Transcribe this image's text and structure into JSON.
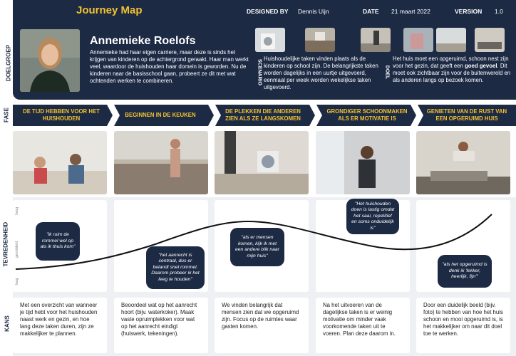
{
  "header": {
    "title": "Journey Map",
    "designed_by_label": "DESIGNED BY",
    "designed_by": "Dennis Uijn",
    "date_label": "DATE",
    "date": "21 maart 2022",
    "version_label": "VERSION",
    "version": "1.0"
  },
  "persona": {
    "section_label": "DOELGROEP",
    "name": "Annemieke Roelofs",
    "description": "Annemieke had haar eigen carriere, maar deze is sinds het krijgen van kinderen op de achtergrond geraakt. Haar man werkt veel, waardoor de huishouden haar domein is geworden. Nu de kinderen naar de basisschool gaan, probeert ze dit met wat ochtenden werken te combineren."
  },
  "scenario": {
    "label": "SCENARIO",
    "text": "Huishoudelijke taken vinden plaats als de kinderen op school zijn. De belangrijkste taken worden dagelijks in een uurtje uitgevoerd, eenmaal per week worden wekelijkse taken uitgevoerd."
  },
  "goal": {
    "label": "DOEL",
    "text_before": "Het huis moet een opgeruimd, schoon nest zijn voor het gezin, dat geeft een ",
    "text_bold": "goed gevoel",
    "text_after": ". Dit moet ook zichtbaar zijn voor de buitenwereld en als anderen langs op bezoek komen."
  },
  "phases": {
    "label": "FASE",
    "items": [
      "DE TIJD HEBBEN VOOR HET HUISHOUDEN",
      "BEGINNEN IN DE KEUKEN",
      "DE PLEKKEN DIE ANDEREN ZIEN ALS ZE LANGSKOMEN",
      "GRONDIGER SCHOONMAKEN ALS ER MOTIVATIE IS",
      "GENIETEN VAN DE RUST VAN EEN OPGERUIMD HUIS"
    ]
  },
  "satisfaction": {
    "label": "TEVREDENHEID",
    "levels": [
      "hoog",
      "gemiddeld",
      "laag"
    ],
    "quotes": [
      "\"ik ruim de rommel wel op als ik thuis kom\"",
      "\"het aanrecht is centraal, dus er belandt snel rommel. Daarom probeer ik het leeg te houden\"",
      "\"als er mensen komen, kijk ik met een andere blik naar mijn huis\"",
      "\"Het huishouden doen is lastig omdat het saai, repetitief en soms onduidelijk is\"",
      "\"als het opgeruimd is denk ik 'lekker, heerlijk, fijn'\""
    ]
  },
  "opportunities": {
    "label": "KANS",
    "items": [
      "Met een overzicht van wanneer je tijd hebt voor het huishouden naast werk en gezin, en hoe lang deze taken duren, zijn ze makkelijker te plannen.",
      "Beoordeel wat op het aanrecht hoort (bijv. waterkoker). Maak vaste opruimplekken voor wat op het aanrecht eindigt (huiswerk, tekeningen).",
      "We vinden belangrijk dat mensen zien dat we opgeruimd zijn. Focus op de ruimtes waar gasten komen.",
      "Na het uitvoeren van de dagelijkse taken is er weinig motivatie om minder vaak voorkomende taken uit te voeren. Plan deze daarom in.",
      "Door een duidelijk beeld (bijv. foto) te hebben van hoe het huis schoon en mooi opgeruimd is, is het makkelijker om naar dit doel toe te werken."
    ]
  },
  "colors": {
    "navy": "#1d2a44",
    "accent_yellow": "#f2c230",
    "panel_grey": "#eef0f3"
  }
}
